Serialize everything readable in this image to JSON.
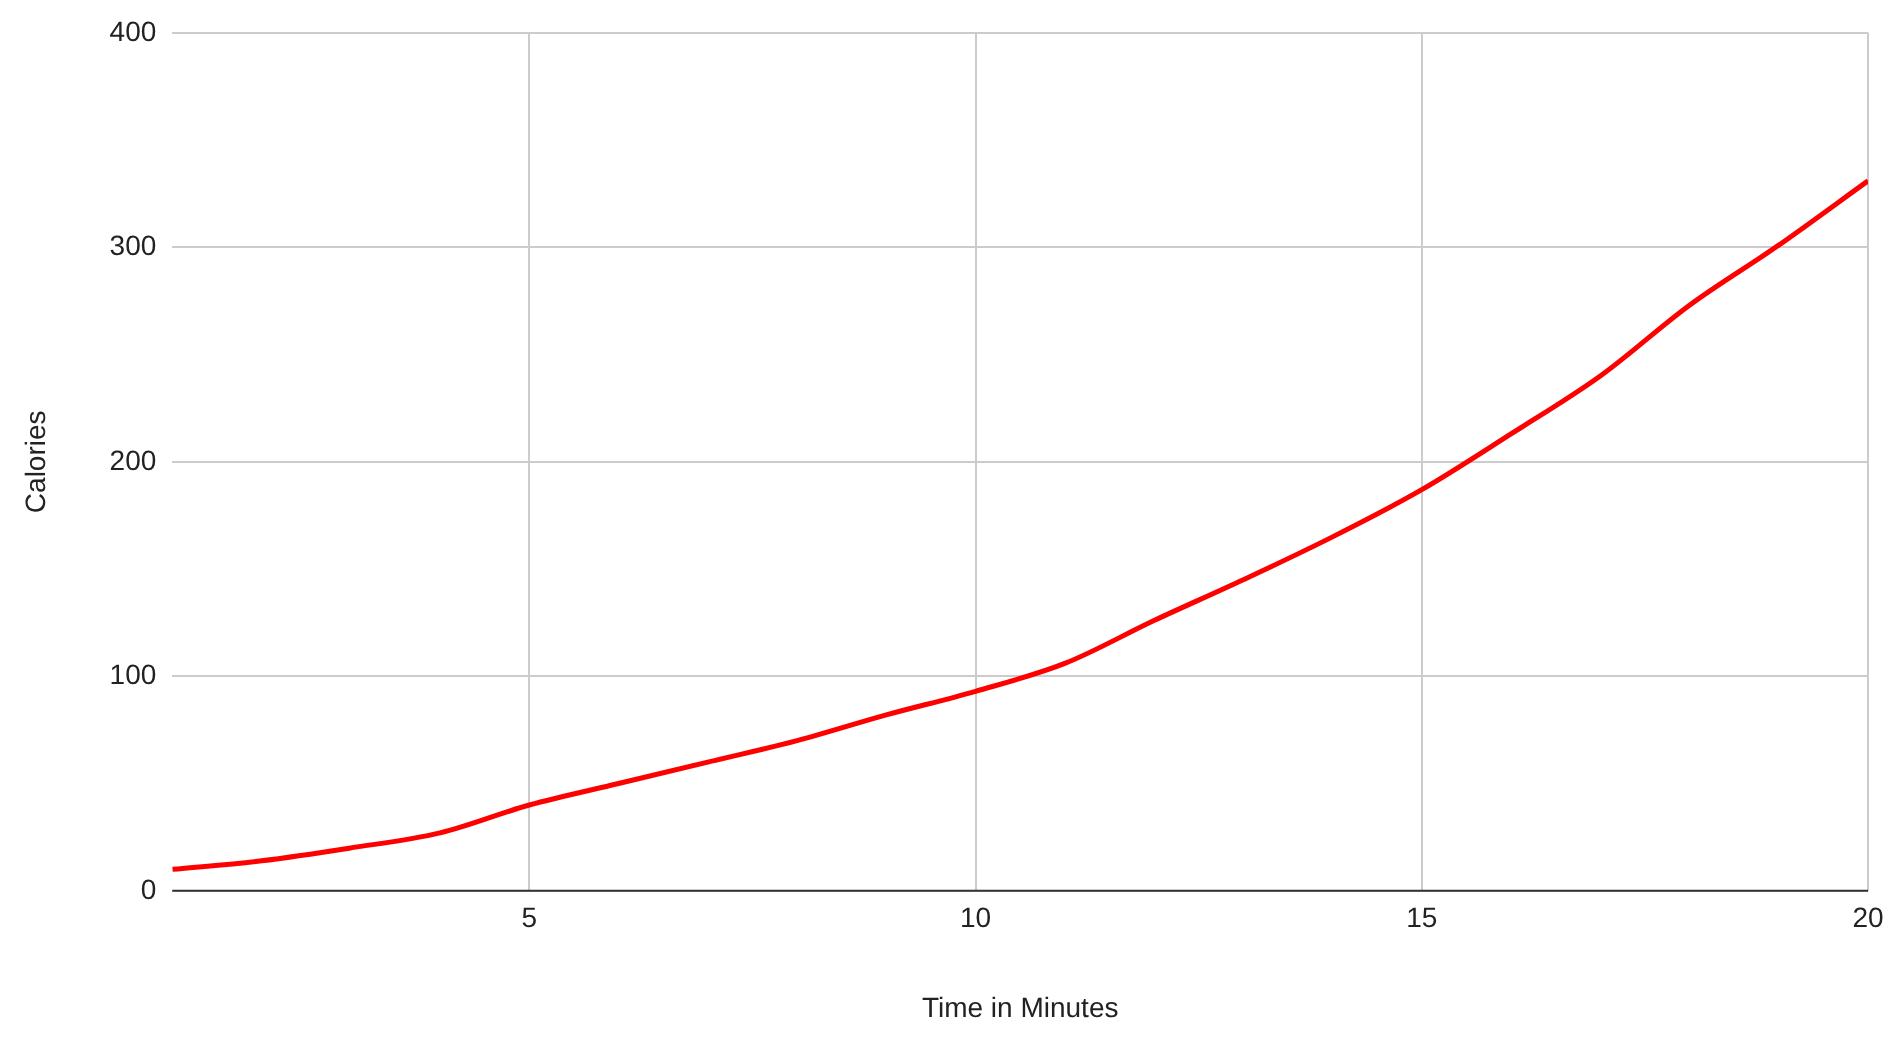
{
  "chart_data": {
    "type": "line",
    "xlabel": "Time in Minutes",
    "ylabel": "Calories",
    "x": [
      1,
      2,
      3,
      4,
      5,
      6,
      7,
      8,
      9,
      10,
      11,
      12,
      13,
      14,
      15,
      16,
      17,
      18,
      19,
      20
    ],
    "series": [
      {
        "color": "#ff0000",
        "values": [
          10,
          14,
          20,
          27,
          40,
          50,
          60,
          70,
          82,
          93,
          106,
          126,
          145,
          165,
          187,
          213,
          240,
          273,
          301,
          331
        ]
      }
    ],
    "xlim": [
      1,
      20
    ],
    "xticks": [
      5,
      10,
      15,
      20
    ],
    "ylim": [
      0,
      400
    ],
    "yticks": [
      0,
      100,
      200,
      300,
      400
    ],
    "grid": true,
    "legend": false,
    "marker": "none",
    "line_style": "solid"
  }
}
